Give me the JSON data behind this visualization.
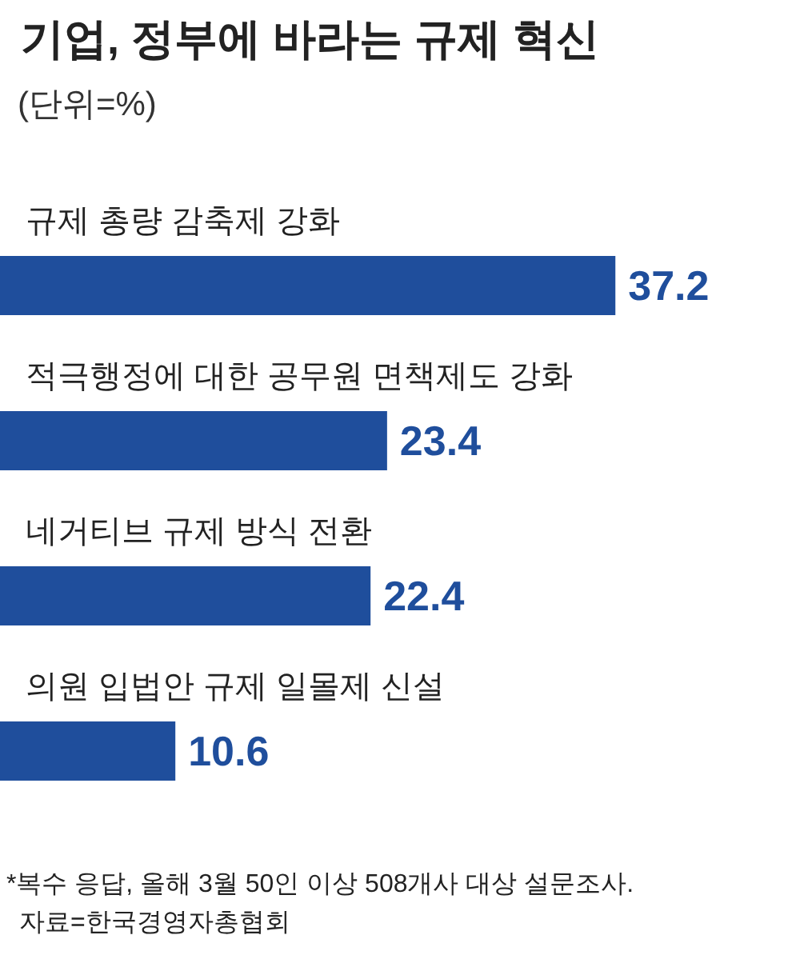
{
  "chart_data": {
    "type": "bar",
    "orientation": "horizontal",
    "title": "기업, 정부에 바라는 규제 혁신",
    "subtitle": "(단위=%)",
    "categories": [
      "규제 총량 감축제 강화",
      "적극행정에 대한 공무원 면책제도 강화",
      "네거티브 규제 방식 전환",
      "의원 입법안 규제 일몰제 신설"
    ],
    "values": [
      37.2,
      23.4,
      22.4,
      10.6
    ],
    "color": "#1f4e9c",
    "data_labels": true,
    "annotations": [
      "*복수 응답, 올해 3월 50인 이상 508개사 대상 설문조사.",
      "자료=한국경영자총협회"
    ]
  }
}
